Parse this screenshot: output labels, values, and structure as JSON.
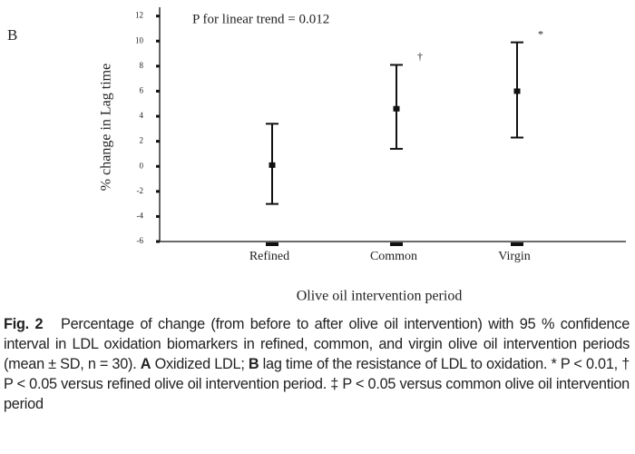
{
  "panel_label": "B",
  "chart_data": {
    "type": "errorbar",
    "annotation": "P for linear trend = 0.012",
    "y_label": "% change in Lag time",
    "x_label": "Olive oil intervention period",
    "categories": [
      "Refined",
      "Common",
      "Virgin"
    ],
    "values": [
      0.1,
      4.6,
      6.0
    ],
    "lower": [
      -3.0,
      1.4,
      2.3
    ],
    "upper": [
      3.4,
      8.1,
      9.9
    ],
    "markers": [
      null,
      "†",
      "*"
    ],
    "color": "#111111",
    "ylim": [
      -6,
      12.7
    ],
    "yticks": [
      -6,
      -4,
      -2,
      0,
      2,
      4,
      6,
      8,
      10,
      12
    ]
  },
  "caption": [
    {
      "text": "Fig. 2",
      "bold": true
    },
    {
      "text": "   Percentage of change (from before to after olive oil intervention) with 95 % confidence interval in LDL oxidation biomarkers in refined, common, and virgin olive oil intervention periods (mean ± SD, n = 30). ",
      "bold": false
    },
    {
      "text": "A",
      "bold": true
    },
    {
      "text": " Oxidized LDL; ",
      "bold": false
    },
    {
      "text": "B",
      "bold": true
    },
    {
      "text": " lag time of the resistance of LDL to oxidation. * P < 0.01, † P < 0.05 versus refined olive oil intervention period. ‡ P < 0.05 versus common olive oil intervention period",
      "bold": false
    }
  ]
}
